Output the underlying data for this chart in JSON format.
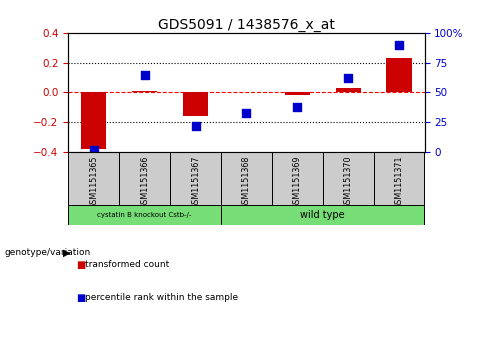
{
  "title": "GDS5091 / 1438576_x_at",
  "samples": [
    "GSM1151365",
    "GSM1151366",
    "GSM1151367",
    "GSM1151368",
    "GSM1151369",
    "GSM1151370",
    "GSM1151371"
  ],
  "transformed_count": [
    -0.38,
    0.01,
    -0.16,
    0.005,
    -0.02,
    0.03,
    0.23
  ],
  "percentile_rank": [
    2,
    65,
    22,
    33,
    38,
    62,
    90
  ],
  "ylim_left": [
    -0.4,
    0.4
  ],
  "ylim_right": [
    0,
    100
  ],
  "yticks_left": [
    -0.4,
    -0.2,
    0.0,
    0.2,
    0.4
  ],
  "yticks_right": [
    0,
    25,
    50,
    75,
    100
  ],
  "ytick_labels_right": [
    "0",
    "25",
    "50",
    "75",
    "100%"
  ],
  "bar_color": "#cc0000",
  "dot_color": "#0000cc",
  "bar_width": 0.5,
  "dot_size": 40,
  "group1_label": "cystatin B knockout Cstb-/-",
  "group2_label": "wild type",
  "group1_indices": [
    0,
    1,
    2
  ],
  "group2_indices": [
    3,
    4,
    5,
    6
  ],
  "group_color": "#77dd77",
  "genotype_label": "genotype/variation",
  "legend_red_label": "transformed count",
  "legend_blue_label": "percentile rank within the sample",
  "tick_color_left": "#cc0000",
  "tick_color_right": "#0000cc",
  "bg_color": "#ffffff",
  "cell_color": "#cccccc"
}
